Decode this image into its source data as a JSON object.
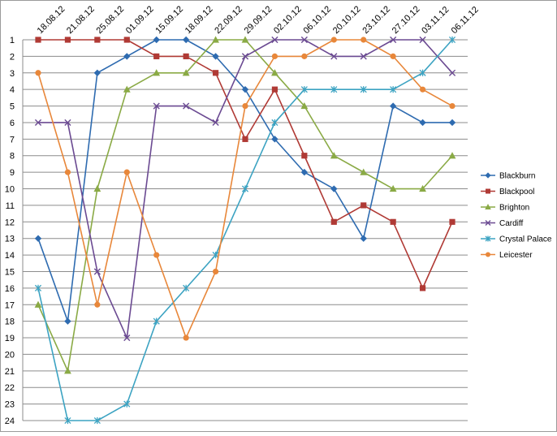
{
  "chart_data": {
    "type": "line",
    "title": "",
    "xlabel": "",
    "ylabel": "",
    "x": [
      "18.08.12",
      "21.08.12",
      "25.08.12",
      "01.09.12",
      "15.09.12",
      "18.09.12",
      "22.09.12",
      "29.09.12",
      "02.10.12",
      "06.10.12",
      "20.10.12",
      "23.10.12",
      "27.10.12",
      "03.11.12",
      "06.11.12"
    ],
    "y_ticks": [
      1,
      2,
      3,
      4,
      5,
      6,
      7,
      8,
      9,
      10,
      11,
      12,
      13,
      14,
      15,
      16,
      17,
      18,
      19,
      20,
      21,
      22,
      23,
      24
    ],
    "ylim": [
      1,
      24
    ],
    "y_inverted": true,
    "grid": "horizontal",
    "legend_position": "right",
    "series": [
      {
        "name": "Blackburn",
        "color": "#2E6BB0",
        "marker": "diamond",
        "values": [
          13,
          18,
          3,
          2,
          1,
          1,
          2,
          4,
          7,
          9,
          10,
          13,
          5,
          6,
          6
        ]
      },
      {
        "name": "Blackpool",
        "color": "#B03A35",
        "marker": "square",
        "values": [
          1,
          1,
          1,
          1,
          2,
          2,
          3,
          7,
          4,
          8,
          12,
          11,
          12,
          16,
          12
        ]
      },
      {
        "name": "Brighton",
        "color": "#8AAA45",
        "marker": "triangle",
        "values": [
          17,
          21,
          10,
          4,
          3,
          3,
          1,
          1,
          3,
          5,
          8,
          9,
          10,
          10,
          8
        ]
      },
      {
        "name": "Cardiff",
        "color": "#6B4A92",
        "marker": "x",
        "values": [
          6,
          6,
          15,
          19,
          5,
          5,
          6,
          2,
          1,
          1,
          2,
          2,
          1,
          1,
          3
        ]
      },
      {
        "name": "Crystal Palace",
        "color": "#3CA3C2",
        "marker": "star",
        "values": [
          16,
          24,
          24,
          23,
          18,
          16,
          14,
          10,
          6,
          4,
          4,
          4,
          4,
          3,
          1
        ]
      },
      {
        "name": "Leicester",
        "color": "#E8873A",
        "marker": "circle",
        "values": [
          3,
          9,
          17,
          9,
          14,
          19,
          15,
          5,
          2,
          2,
          1,
          1,
          2,
          4,
          5
        ]
      }
    ]
  }
}
